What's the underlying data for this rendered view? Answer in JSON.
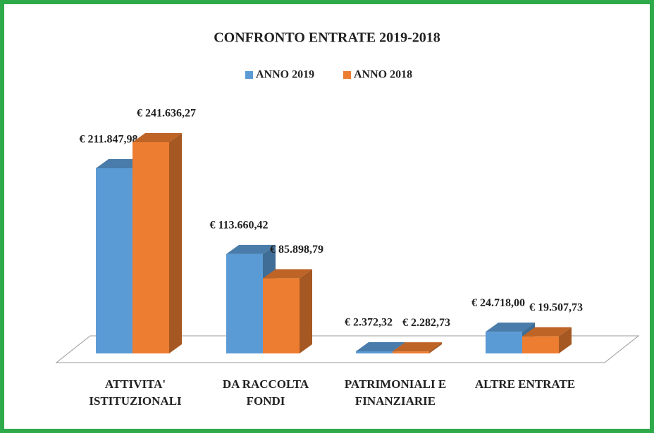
{
  "chart_data": {
    "type": "bar",
    "title": "CONFRONTO ENTRATE 2019-2018",
    "categories": [
      "ATTIVITA' ISTITUZIONALI",
      "DA RACCOLTA FONDI",
      "PATRIMONIALI E FINANZIARIE",
      "ALTRE ENTRATE"
    ],
    "series": [
      {
        "name": "ANNO 2019",
        "color": "#5b9bd5",
        "values": [
          211847.98,
          113660.42,
          2372.32,
          24718.0
        ],
        "value_labels": [
          "€ 211.847,98",
          "€ 113.660,42",
          "€ 2.372,32",
          "€ 24.718,00"
        ]
      },
      {
        "name": "ANNO 2018",
        "color": "#ed7d31",
        "values": [
          241636.27,
          85898.79,
          2282.73,
          19507.73
        ],
        "value_labels": [
          "€ 241.636,27",
          "€ 85.898,79",
          "€ 2.282,73",
          "€ 19.507,73"
        ]
      }
    ]
  }
}
